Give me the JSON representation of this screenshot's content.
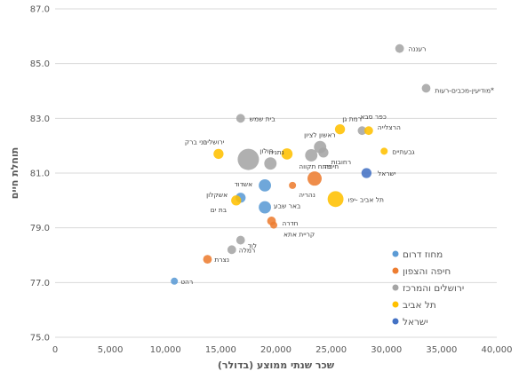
{
  "chart_data": {
    "type": "scatter",
    "title": "",
    "xlabel": "שכר שנתי ממוצע (בדולר)",
    "ylabel": "תוחלת חיים",
    "xlim": [
      0,
      40000
    ],
    "ylim": [
      75,
      87
    ],
    "x_ticks": [
      "0",
      "5,000",
      "10,000",
      "15,000",
      "20,000",
      "25,000",
      "30,000",
      "35,000",
      "40,000"
    ],
    "y_ticks": [
      "75.0",
      "77.0",
      "79.0",
      "81.0",
      "83.0",
      "85.0",
      "87.0"
    ],
    "grid": "horizontal",
    "legend_position": "bottom-right",
    "series": [
      {
        "name": "מחוז דרום",
        "color": "#5b9bd5",
        "points": [
          {
            "label": "רהט",
            "x": 10800,
            "y": 77.05,
            "size": 1
          },
          {
            "label": "אשקלון",
            "x": 16800,
            "y": 80.1,
            "size": 2
          },
          {
            "label": "אשדוד",
            "x": 19000,
            "y": 80.55,
            "size": 3
          },
          {
            "label": "באר שבע",
            "x": 19000,
            "y": 79.75,
            "size": 3
          }
        ]
      },
      {
        "name": "חיפה והצפון",
        "color": "#ed7d31",
        "points": [
          {
            "label": "נצרת",
            "x": 13800,
            "y": 77.85,
            "size": 1.5
          },
          {
            "label": "חדרה",
            "x": 19600,
            "y": 79.25,
            "size": 1.5
          },
          {
            "label": "קריית אתא",
            "x": 19800,
            "y": 79.1,
            "size": 1
          },
          {
            "label": "נהריה",
            "x": 21500,
            "y": 80.55,
            "size": 1
          },
          {
            "label": "חיפה",
            "x": 23500,
            "y": 80.8,
            "size": 4
          }
        ]
      },
      {
        "name": "ירושלים והמרכז",
        "color": "#a5a5a5",
        "points": [
          {
            "label": "רמלה",
            "x": 16000,
            "y": 78.2,
            "size": 1.5
          },
          {
            "label": "לוד",
            "x": 16800,
            "y": 78.55,
            "size": 1.5
          },
          {
            "label": "ירושלים",
            "x": 17500,
            "y": 81.5,
            "size": 9
          },
          {
            "label": "בית שמש",
            "x": 16800,
            "y": 83.0,
            "size": 1.5
          },
          {
            "label": "נתניה",
            "x": 19500,
            "y": 81.35,
            "size": 3
          },
          {
            "label": "פתח תקווה",
            "x": 23200,
            "y": 81.65,
            "size": 3
          },
          {
            "label": "ראשון לציון",
            "x": 24000,
            "y": 81.95,
            "size": 3
          },
          {
            "label": "רחובות",
            "x": 24300,
            "y": 81.75,
            "size": 2
          },
          {
            "label": "כפר סבא",
            "x": 27800,
            "y": 82.55,
            "size": 1.5
          },
          {
            "label": "רעננה",
            "x": 31200,
            "y": 85.55,
            "size": 1.5
          },
          {
            "label": "מודיעין-מכבים-רעות*",
            "x": 33600,
            "y": 84.1,
            "size": 1.5
          }
        ]
      },
      {
        "name": "תל אביב",
        "color": "#ffc000",
        "points": [
          {
            "label": "בני ברק",
            "x": 14800,
            "y": 81.7,
            "size": 2
          },
          {
            "label": "בת ים",
            "x": 16400,
            "y": 80.0,
            "size": 2
          },
          {
            "label": "חולון",
            "x": 21000,
            "y": 81.7,
            "size": 2.5
          },
          {
            "label": "תל אביב -יפו",
            "x": 25400,
            "y": 80.05,
            "size": 5
          },
          {
            "label": "רמת גן",
            "x": 25800,
            "y": 82.6,
            "size": 2
          },
          {
            "label": "הרצלייה",
            "x": 28400,
            "y": 82.55,
            "size": 1.5
          },
          {
            "label": "גבעתיים",
            "x": 29800,
            "y": 81.8,
            "size": 1
          }
        ]
      },
      {
        "name": "ישראל",
        "color": "#4472c4",
        "points": [
          {
            "label": "ישראל",
            "x": 28200,
            "y": 81.0,
            "size": 2
          }
        ]
      }
    ]
  }
}
